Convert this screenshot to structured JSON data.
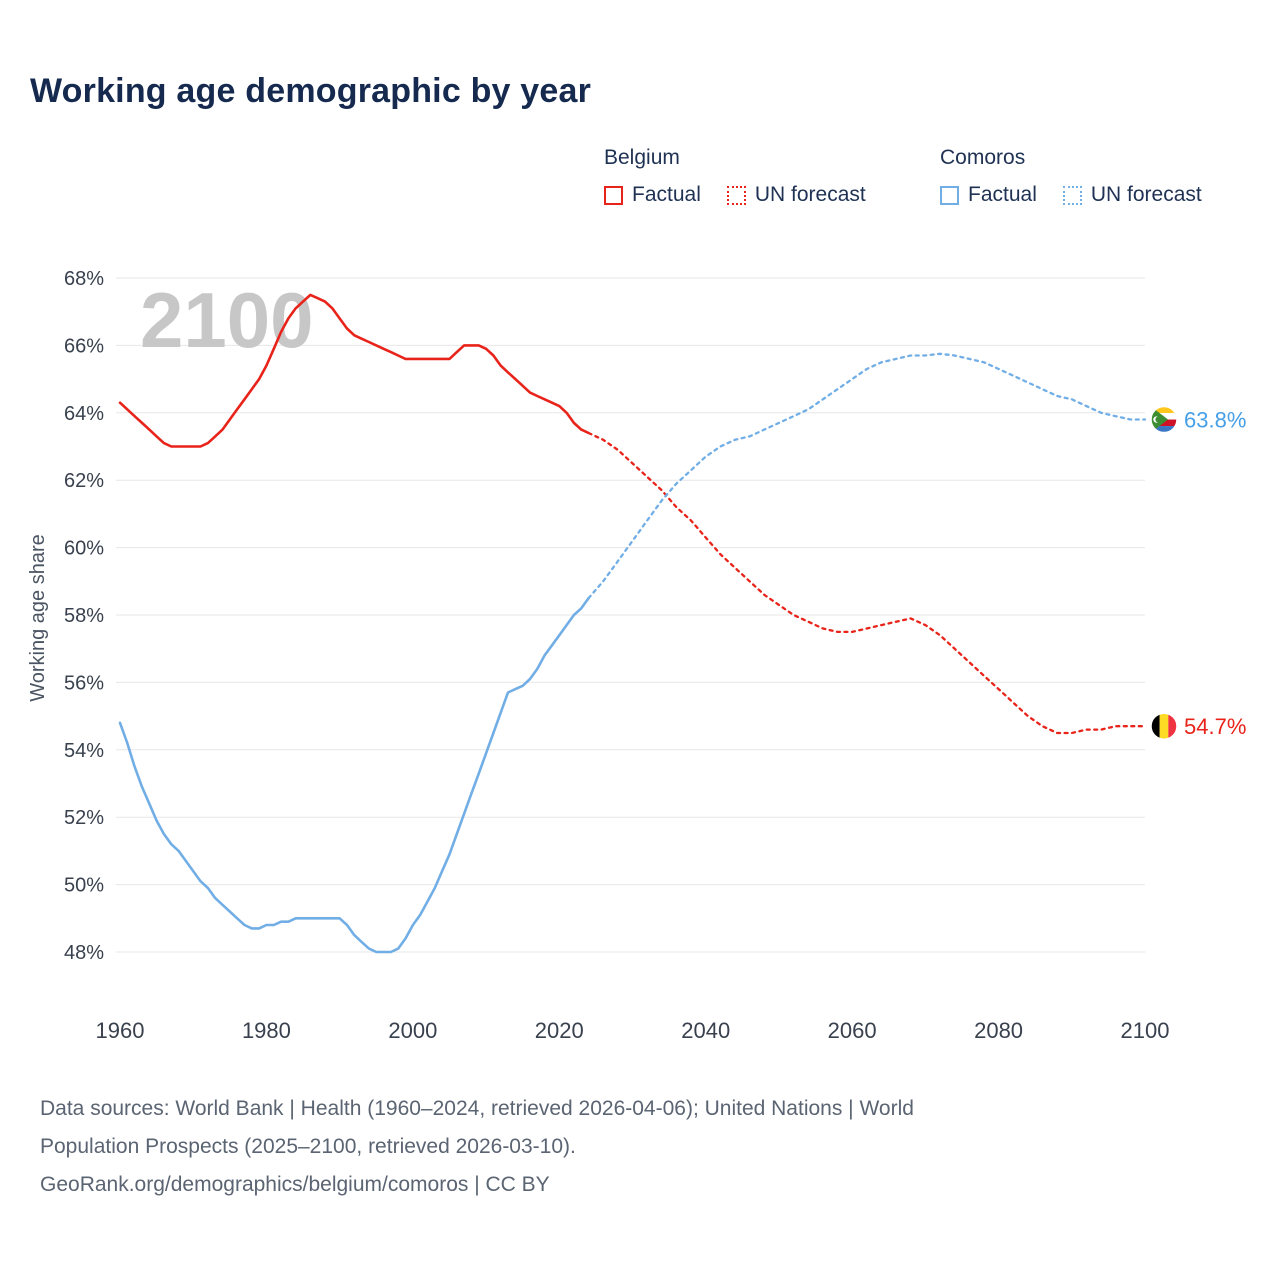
{
  "title": "Working age demographic by year",
  "watermark": "2100",
  "legend": {
    "groups": [
      {
        "name": "Belgium",
        "color": "#e8231a",
        "entries": [
          {
            "label": "Factual",
            "style": "solid"
          },
          {
            "label": "UN forecast",
            "style": "dotted"
          }
        ]
      },
      {
        "name": "Comoros",
        "color": "#72aee6",
        "entries": [
          {
            "label": "Factual",
            "style": "solid"
          },
          {
            "label": "UN forecast",
            "style": "dotted"
          }
        ]
      }
    ]
  },
  "end_labels": {
    "comoros": {
      "value": "63.8%",
      "color": "#479fe6",
      "flag": "comoros-flag-icon"
    },
    "belgium": {
      "value": "54.7%",
      "color": "#e8231a",
      "flag": "belgium-flag-icon"
    }
  },
  "footer": {
    "line1": "Data sources: World Bank | Health (1960–2024, retrieved 2026-04-06); United Nations | World",
    "line2": "Population Prospects (2025–2100, retrieved 2026-03-10).",
    "line3": "GeoRank.org/demographics/belgium/comoros | CC BY"
  },
  "chart_data": {
    "type": "line",
    "title": "Working age demographic by year",
    "xlabel": "",
    "ylabel": "Working age share",
    "xlim": [
      1960,
      2100
    ],
    "ylim": [
      48,
      68
    ],
    "yticks": [
      48,
      50,
      52,
      54,
      56,
      58,
      60,
      62,
      64,
      66,
      68
    ],
    "xticks": [
      1960,
      1980,
      2000,
      2020,
      2040,
      2060,
      2080,
      2100
    ],
    "grid": "horizontal",
    "legend_position": "top",
    "series": [
      {
        "name": "Belgium Factual",
        "color": "#e8231a",
        "style": "solid",
        "points": [
          [
            1960,
            64.3
          ],
          [
            1961,
            64.1
          ],
          [
            1962,
            63.9
          ],
          [
            1963,
            63.7
          ],
          [
            1964,
            63.5
          ],
          [
            1965,
            63.3
          ],
          [
            1966,
            63.1
          ],
          [
            1967,
            63.0
          ],
          [
            1968,
            63.0
          ],
          [
            1969,
            63.0
          ],
          [
            1970,
            63.0
          ],
          [
            1971,
            63.0
          ],
          [
            1972,
            63.1
          ],
          [
            1973,
            63.3
          ],
          [
            1974,
            63.5
          ],
          [
            1975,
            63.8
          ],
          [
            1976,
            64.1
          ],
          [
            1977,
            64.4
          ],
          [
            1978,
            64.7
          ],
          [
            1979,
            65.0
          ],
          [
            1980,
            65.4
          ],
          [
            1981,
            65.9
          ],
          [
            1982,
            66.4
          ],
          [
            1983,
            66.8
          ],
          [
            1984,
            67.1
          ],
          [
            1985,
            67.3
          ],
          [
            1986,
            67.5
          ],
          [
            1987,
            67.4
          ],
          [
            1988,
            67.3
          ],
          [
            1989,
            67.1
          ],
          [
            1990,
            66.8
          ],
          [
            1991,
            66.5
          ],
          [
            1992,
            66.3
          ],
          [
            1993,
            66.2
          ],
          [
            1994,
            66.1
          ],
          [
            1995,
            66.0
          ],
          [
            1996,
            65.9
          ],
          [
            1997,
            65.8
          ],
          [
            1998,
            65.7
          ],
          [
            1999,
            65.6
          ],
          [
            2000,
            65.6
          ],
          [
            2001,
            65.6
          ],
          [
            2002,
            65.6
          ],
          [
            2003,
            65.6
          ],
          [
            2004,
            65.6
          ],
          [
            2005,
            65.6
          ],
          [
            2006,
            65.8
          ],
          [
            2007,
            66.0
          ],
          [
            2008,
            66.0
          ],
          [
            2009,
            66.0
          ],
          [
            2010,
            65.9
          ],
          [
            2011,
            65.7
          ],
          [
            2012,
            65.4
          ],
          [
            2013,
            65.2
          ],
          [
            2014,
            65.0
          ],
          [
            2015,
            64.8
          ],
          [
            2016,
            64.6
          ],
          [
            2017,
            64.5
          ],
          [
            2018,
            64.4
          ],
          [
            2019,
            64.3
          ],
          [
            2020,
            64.2
          ],
          [
            2021,
            64.0
          ],
          [
            2022,
            63.7
          ],
          [
            2023,
            63.5
          ],
          [
            2024,
            63.4
          ]
        ]
      },
      {
        "name": "Belgium UN forecast",
        "color": "#e8231a",
        "style": "dashed",
        "points": [
          [
            2024,
            63.4
          ],
          [
            2026,
            63.2
          ],
          [
            2028,
            62.9
          ],
          [
            2030,
            62.5
          ],
          [
            2032,
            62.1
          ],
          [
            2034,
            61.7
          ],
          [
            2036,
            61.2
          ],
          [
            2038,
            60.8
          ],
          [
            2040,
            60.3
          ],
          [
            2042,
            59.8
          ],
          [
            2044,
            59.4
          ],
          [
            2046,
            59.0
          ],
          [
            2048,
            58.6
          ],
          [
            2050,
            58.3
          ],
          [
            2052,
            58.0
          ],
          [
            2054,
            57.8
          ],
          [
            2056,
            57.6
          ],
          [
            2058,
            57.5
          ],
          [
            2060,
            57.5
          ],
          [
            2062,
            57.6
          ],
          [
            2064,
            57.7
          ],
          [
            2066,
            57.8
          ],
          [
            2068,
            57.9
          ],
          [
            2070,
            57.7
          ],
          [
            2072,
            57.4
          ],
          [
            2074,
            57.0
          ],
          [
            2076,
            56.6
          ],
          [
            2078,
            56.2
          ],
          [
            2080,
            55.8
          ],
          [
            2082,
            55.4
          ],
          [
            2084,
            55.0
          ],
          [
            2086,
            54.7
          ],
          [
            2088,
            54.5
          ],
          [
            2090,
            54.5
          ],
          [
            2092,
            54.6
          ],
          [
            2094,
            54.6
          ],
          [
            2096,
            54.7
          ],
          [
            2098,
            54.7
          ],
          [
            2100,
            54.7
          ]
        ]
      },
      {
        "name": "Comoros Factual",
        "color": "#72aee6",
        "style": "solid",
        "points": [
          [
            1960,
            54.8
          ],
          [
            1961,
            54.2
          ],
          [
            1962,
            53.5
          ],
          [
            1963,
            52.9
          ],
          [
            1964,
            52.4
          ],
          [
            1965,
            51.9
          ],
          [
            1966,
            51.5
          ],
          [
            1967,
            51.2
          ],
          [
            1968,
            51.0
          ],
          [
            1969,
            50.7
          ],
          [
            1970,
            50.4
          ],
          [
            1971,
            50.1
          ],
          [
            1972,
            49.9
          ],
          [
            1973,
            49.6
          ],
          [
            1974,
            49.4
          ],
          [
            1975,
            49.2
          ],
          [
            1976,
            49.0
          ],
          [
            1977,
            48.8
          ],
          [
            1978,
            48.7
          ],
          [
            1979,
            48.7
          ],
          [
            1980,
            48.8
          ],
          [
            1981,
            48.8
          ],
          [
            1982,
            48.9
          ],
          [
            1983,
            48.9
          ],
          [
            1984,
            49.0
          ],
          [
            1985,
            49.0
          ],
          [
            1986,
            49.0
          ],
          [
            1987,
            49.0
          ],
          [
            1988,
            49.0
          ],
          [
            1989,
            49.0
          ],
          [
            1990,
            49.0
          ],
          [
            1991,
            48.8
          ],
          [
            1992,
            48.5
          ],
          [
            1993,
            48.3
          ],
          [
            1994,
            48.1
          ],
          [
            1995,
            48.0
          ],
          [
            1996,
            48.0
          ],
          [
            1997,
            48.0
          ],
          [
            1998,
            48.1
          ],
          [
            1999,
            48.4
          ],
          [
            2000,
            48.8
          ],
          [
            2001,
            49.1
          ],
          [
            2002,
            49.5
          ],
          [
            2003,
            49.9
          ],
          [
            2004,
            50.4
          ],
          [
            2005,
            50.9
          ],
          [
            2006,
            51.5
          ],
          [
            2007,
            52.1
          ],
          [
            2008,
            52.7
          ],
          [
            2009,
            53.3
          ],
          [
            2010,
            53.9
          ],
          [
            2011,
            54.5
          ],
          [
            2012,
            55.1
          ],
          [
            2013,
            55.7
          ],
          [
            2014,
            55.8
          ],
          [
            2015,
            55.9
          ],
          [
            2016,
            56.1
          ],
          [
            2017,
            56.4
          ],
          [
            2018,
            56.8
          ],
          [
            2019,
            57.1
          ],
          [
            2020,
            57.4
          ],
          [
            2021,
            57.7
          ],
          [
            2022,
            58.0
          ],
          [
            2023,
            58.2
          ],
          [
            2024,
            58.5
          ]
        ]
      },
      {
        "name": "Comoros UN forecast",
        "color": "#72aee6",
        "style": "dashed",
        "points": [
          [
            2024,
            58.5
          ],
          [
            2026,
            59.0
          ],
          [
            2028,
            59.6
          ],
          [
            2030,
            60.2
          ],
          [
            2032,
            60.8
          ],
          [
            2034,
            61.4
          ],
          [
            2036,
            61.9
          ],
          [
            2038,
            62.3
          ],
          [
            2040,
            62.7
          ],
          [
            2042,
            63.0
          ],
          [
            2044,
            63.2
          ],
          [
            2046,
            63.3
          ],
          [
            2048,
            63.5
          ],
          [
            2050,
            63.7
          ],
          [
            2052,
            63.9
          ],
          [
            2054,
            64.1
          ],
          [
            2056,
            64.4
          ],
          [
            2058,
            64.7
          ],
          [
            2060,
            65.0
          ],
          [
            2062,
            65.3
          ],
          [
            2064,
            65.5
          ],
          [
            2066,
            65.6
          ],
          [
            2068,
            65.7
          ],
          [
            2070,
            65.7
          ],
          [
            2072,
            65.75
          ],
          [
            2074,
            65.7
          ],
          [
            2076,
            65.6
          ],
          [
            2078,
            65.5
          ],
          [
            2080,
            65.3
          ],
          [
            2082,
            65.1
          ],
          [
            2084,
            64.9
          ],
          [
            2086,
            64.7
          ],
          [
            2088,
            64.5
          ],
          [
            2090,
            64.4
          ],
          [
            2092,
            64.2
          ],
          [
            2094,
            64.0
          ],
          [
            2096,
            63.9
          ],
          [
            2098,
            63.8
          ],
          [
            2100,
            63.8
          ]
        ]
      }
    ]
  }
}
